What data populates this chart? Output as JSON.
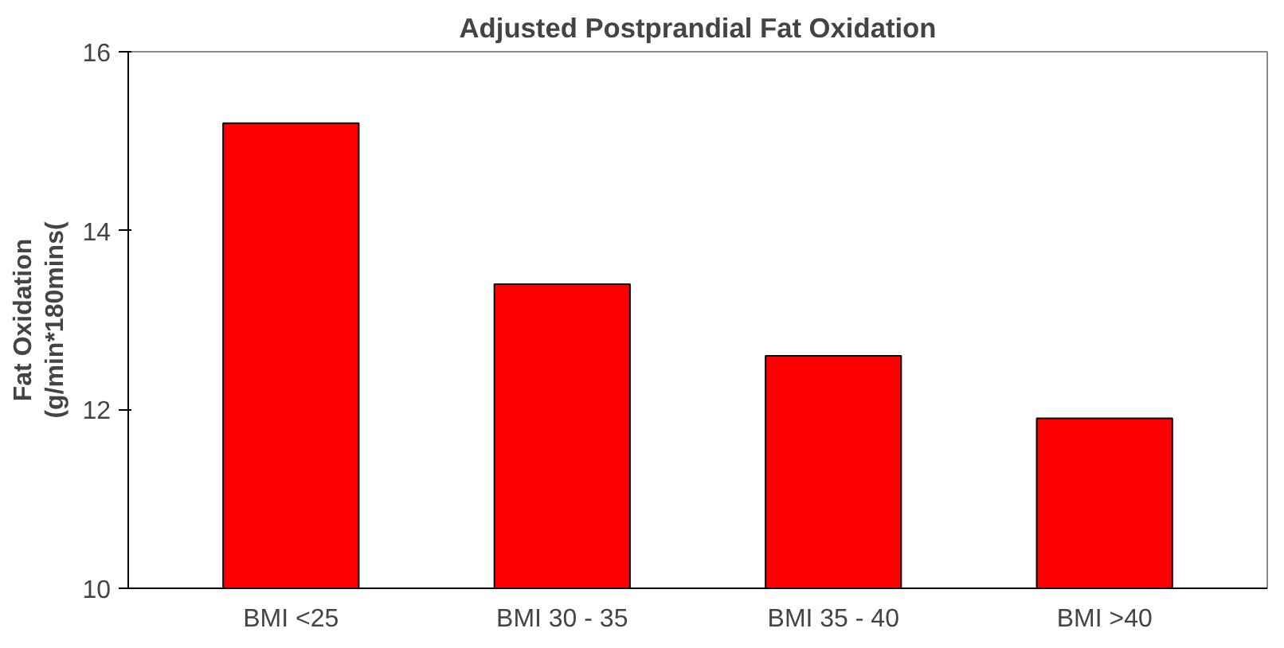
{
  "chart_data": {
    "type": "bar",
    "title": "Adjusted Postprandial Fat Oxidation",
    "ylabel": "Fat Oxidation\n(g/min*180mins(",
    "categories": [
      "BMI <25",
      "BMI 30 - 35",
      "BMI 35 - 40",
      "BMI >40"
    ],
    "values": [
      15.2,
      13.4,
      12.6,
      11.9
    ],
    "color": "#ff0000",
    "ylim": [
      10,
      16
    ],
    "yticks": [
      10,
      12,
      14,
      16
    ],
    "grid": false
  }
}
